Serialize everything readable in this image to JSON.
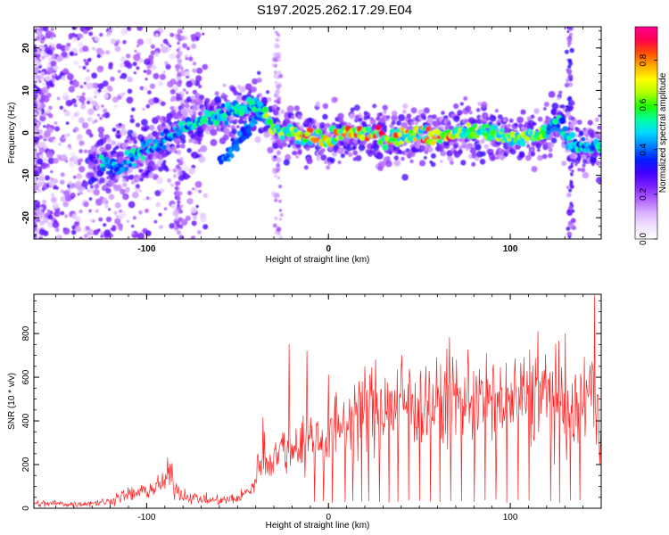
{
  "title": "S197.2025.262.17.29.E04",
  "colors": {
    "snr_line": "#ff2020",
    "axis": "#000000"
  },
  "chart_data": [
    {
      "type": "heatmap",
      "name": "spectrogram",
      "xlabel": "Height of straight line (km)",
      "ylabel": "Frequency (Hz)",
      "xlim": [
        -162,
        150
      ],
      "ylim": [
        -25,
        25
      ],
      "xticks": [
        "-100",
        "0",
        "100"
      ],
      "yticks": [
        "-20",
        "-10",
        "0",
        "10",
        "20"
      ],
      "colorbar": {
        "label": "Normalized spectral amplitude",
        "range": [
          0.0,
          0.95
        ],
        "ticks": [
          "0.0",
          "0.2",
          "0.4",
          "0.6",
          "0.8"
        ],
        "colors": [
          "#ffffff",
          "#f0e0ff",
          "#d8b0ff",
          "#b060ff",
          "#7a20ff",
          "#4000ff",
          "#0020ff",
          "#0080ff",
          "#00d8ff",
          "#00ffa0",
          "#20ff00",
          "#b0ff00",
          "#ffff00",
          "#ffb000",
          "#ff5000",
          "#ff0050",
          "#ff0090"
        ]
      },
      "ridge": {
        "description": "dominant frequency track",
        "x": [
          -125,
          -115,
          -105,
          -95,
          -85,
          -75,
          -65,
          -55,
          -45,
          -38,
          -32,
          -25,
          -15,
          -5,
          0,
          10,
          20,
          30,
          40,
          50,
          60,
          70,
          80,
          90,
          100,
          110,
          120,
          127,
          133,
          140,
          148
        ],
        "y": [
          -7,
          -8,
          -5,
          -3,
          0,
          2,
          4,
          5,
          6,
          7,
          1,
          0,
          -1,
          -1,
          -2,
          0,
          0,
          -1,
          -1,
          0,
          -1,
          0,
          0,
          0,
          -1,
          -1,
          0,
          3,
          -3,
          -3,
          -3
        ]
      },
      "secondary_track": {
        "x": [
          -60,
          -55,
          -50,
          -45,
          -40,
          -36
        ],
        "y": [
          -7,
          -5,
          -2,
          1,
          3,
          5
        ]
      }
    },
    {
      "type": "line",
      "name": "snr",
      "xlabel": "Height of straight line (km)",
      "ylabel": "SNR (10 * v/v)",
      "xlim": [
        -162,
        150
      ],
      "ylim": [
        0,
        980
      ],
      "xticks": [
        "-100",
        "0",
        "100"
      ],
      "yticks": [
        "0",
        "200",
        "400",
        "600",
        "800"
      ],
      "series": [
        {
          "name": "SNR",
          "color": "#ff2020",
          "x": [
            -162,
            -150,
            -140,
            -130,
            -120,
            -115,
            -110,
            -100,
            -95,
            -90,
            -87,
            -85,
            -80,
            -70,
            -60,
            -50,
            -45,
            -40,
            -38,
            -36,
            -34,
            -30,
            -25,
            -20,
            -15,
            -10,
            -5,
            0,
            5,
            10,
            15,
            20,
            25,
            30,
            40,
            50,
            60,
            70,
            80,
            90,
            100,
            110,
            120,
            125,
            130,
            135,
            140,
            145,
            150
          ],
          "values": [
            20,
            22,
            18,
            25,
            30,
            55,
            60,
            80,
            95,
            120,
            170,
            100,
            60,
            40,
            35,
            45,
            70,
            120,
            230,
            280,
            200,
            250,
            270,
            280,
            300,
            320,
            310,
            330,
            370,
            400,
            440,
            470,
            460,
            470,
            480,
            490,
            470,
            500,
            510,
            480,
            490,
            510,
            520,
            500,
            450,
            420,
            500,
            560,
            420
          ]
        }
      ],
      "spikes": {
        "up": [
          {
            "x": -22,
            "y": 750
          },
          {
            "x": -12,
            "y": 720
          },
          {
            "x": 0,
            "y": 610
          },
          {
            "x": 40,
            "y": 700
          },
          {
            "x": 65,
            "y": 730
          },
          {
            "x": 115,
            "y": 810
          },
          {
            "x": 130,
            "y": 800
          },
          {
            "x": 146,
            "y": 975
          }
        ],
        "down": [
          -8,
          -3,
          2,
          9,
          13,
          18,
          22,
          28,
          33,
          38,
          44,
          50,
          56,
          61,
          67,
          73,
          80,
          86,
          92,
          98,
          104,
          110,
          122,
          127,
          133,
          138
        ]
      }
    }
  ]
}
